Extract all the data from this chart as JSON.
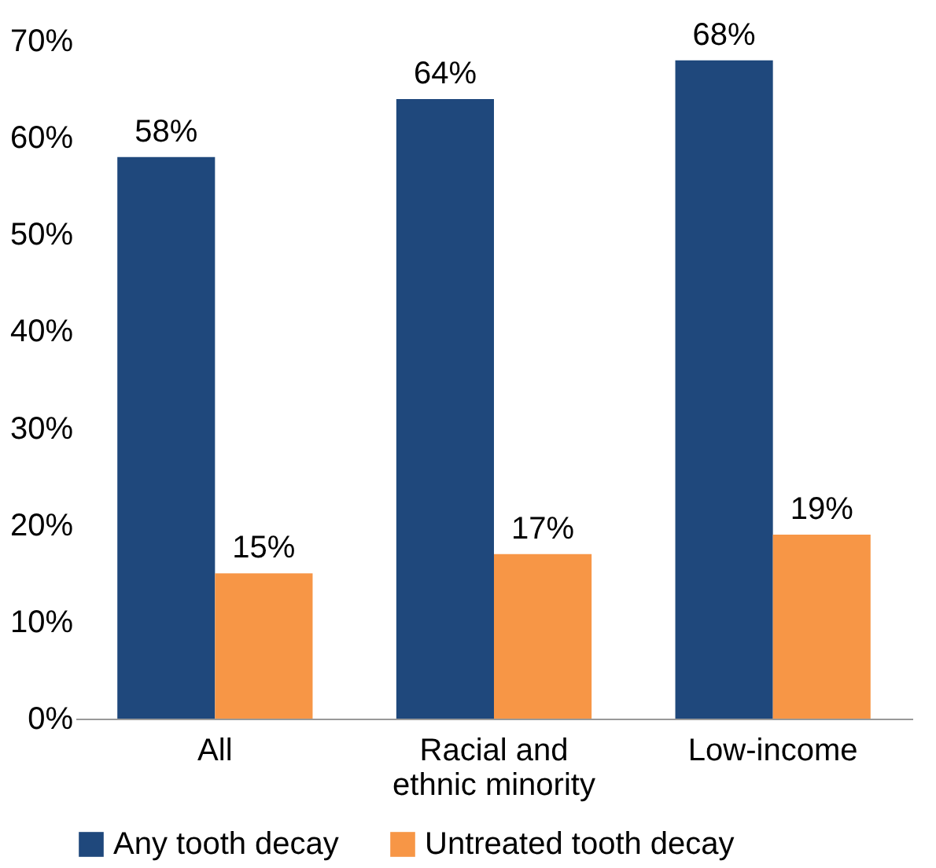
{
  "chart_data": {
    "type": "bar",
    "categories": [
      "All",
      "Racial and ethnic minority",
      "Low-income"
    ],
    "series": [
      {
        "name": "Any tooth decay",
        "color": "#1f487c",
        "values": [
          58,
          64,
          68
        ],
        "value_labels": [
          "58%",
          "64%",
          "68%"
        ]
      },
      {
        "name": "Untreated tooth decay",
        "color": "#f79646",
        "values": [
          15,
          17,
          19
        ],
        "value_labels": [
          "15%",
          "17%",
          "19%"
        ]
      }
    ],
    "ylim": [
      0,
      70
    ],
    "yticks": [
      {
        "value": 0,
        "label": "0%"
      },
      {
        "value": 10,
        "label": "10%"
      },
      {
        "value": 20,
        "label": "20%"
      },
      {
        "value": 30,
        "label": "30%"
      },
      {
        "value": 40,
        "label": "40%"
      },
      {
        "value": 50,
        "label": "50%"
      },
      {
        "value": 60,
        "label": "60%"
      },
      {
        "value": 70,
        "label": "70%"
      }
    ],
    "grid": false,
    "legend": "bottom"
  }
}
